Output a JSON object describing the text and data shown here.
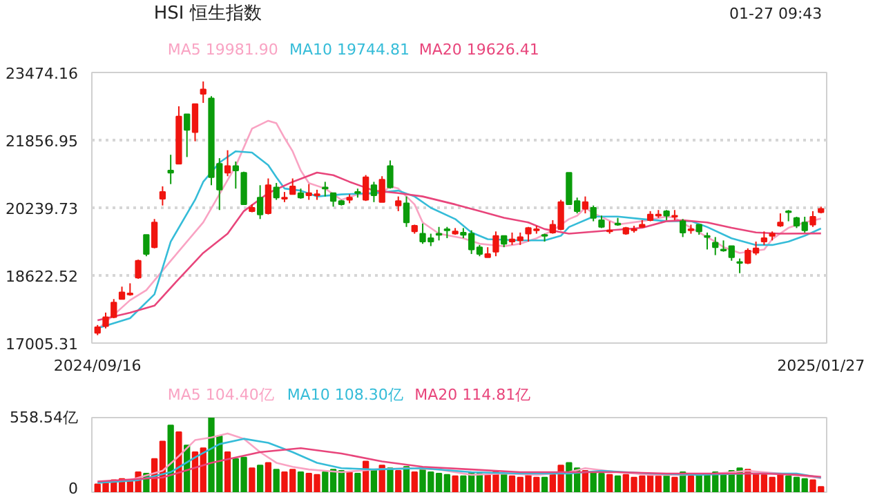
{
  "chart_data": [
    {
      "type": "candlestick",
      "title": "HSI 恒生指数",
      "annotations": [
        "01-27 09:43"
      ],
      "legend": "top",
      "grid": "y",
      "categories": [
        "2024/09/16",
        null,
        null,
        null,
        null,
        null,
        null,
        null,
        null,
        null,
        null,
        null,
        null,
        null,
        null,
        null,
        null,
        null,
        null,
        null,
        null,
        null,
        null,
        null,
        null,
        null,
        null,
        null,
        null,
        null,
        null,
        null,
        null,
        null,
        null,
        null,
        null,
        null,
        null,
        null,
        null,
        null,
        null,
        null,
        null,
        null,
        null,
        null,
        null,
        null,
        null,
        null,
        null,
        null,
        null,
        null,
        null,
        null,
        null,
        null,
        null,
        null,
        null,
        null,
        null,
        null,
        null,
        null,
        null,
        null,
        null,
        null,
        null,
        null,
        null,
        null,
        null,
        null,
        null,
        null,
        null,
        null,
        null,
        null,
        null,
        null,
        null,
        null,
        null,
        "2025/01/27"
      ],
      "ohlc": [
        [
          17249,
          17437,
          17195,
          17383
        ],
        [
          17410,
          17734,
          17356,
          17626
        ],
        [
          17626,
          18057,
          17599,
          17976
        ],
        [
          18057,
          18354,
          18057,
          18219
        ],
        [
          18165,
          18434,
          18138,
          18192
        ],
        [
          18569,
          19000,
          18542,
          18973
        ],
        [
          19594,
          19594,
          19081,
          19135
        ],
        [
          19297,
          19971,
          19270,
          19890
        ],
        [
          20456,
          20752,
          20294,
          20618
        ],
        [
          21130,
          21507,
          20806,
          21076
        ],
        [
          21291,
          22666,
          21291,
          22423
        ],
        [
          22477,
          22477,
          21453,
          22100
        ],
        [
          22046,
          22720,
          21830,
          22720
        ],
        [
          22962,
          23259,
          22747,
          23070
        ],
        [
          22854,
          22908,
          20779,
          20968
        ],
        [
          21291,
          21426,
          20186,
          20671
        ],
        [
          21076,
          21615,
          20995,
          21237
        ],
        [
          21237,
          21345,
          20698,
          21130
        ],
        [
          21076,
          21103,
          20321,
          20321
        ],
        [
          20159,
          20321,
          20132,
          20240
        ],
        [
          20483,
          20779,
          19971,
          20079
        ],
        [
          20106,
          20941,
          20079,
          20779
        ],
        [
          20725,
          20833,
          20429,
          20483
        ],
        [
          20456,
          20618,
          20375,
          20483
        ],
        [
          20564,
          20941,
          20564,
          20752
        ],
        [
          20591,
          20698,
          20456,
          20483
        ],
        [
          20537,
          20806,
          20429,
          20591
        ],
        [
          20537,
          20671,
          20429,
          20564
        ],
        [
          20725,
          20860,
          20510,
          20698
        ],
        [
          20591,
          20591,
          20267,
          20402
        ],
        [
          20402,
          20429,
          20294,
          20321
        ],
        [
          20429,
          20564,
          20348,
          20483
        ],
        [
          20618,
          20698,
          20483,
          20591
        ],
        [
          20429,
          21022,
          20402,
          20968
        ],
        [
          20779,
          20860,
          20375,
          20537
        ],
        [
          20375,
          20995,
          20375,
          20914
        ],
        [
          21237,
          21372,
          20698,
          20725
        ],
        [
          20294,
          20510,
          20159,
          20402
        ],
        [
          20348,
          20510,
          19782,
          19890
        ],
        [
          19674,
          19836,
          19620,
          19809
        ],
        [
          19620,
          19863,
          19378,
          19432
        ],
        [
          19513,
          19620,
          19324,
          19432
        ],
        [
          19620,
          19782,
          19459,
          19594
        ],
        [
          19728,
          19782,
          19513,
          19701
        ],
        [
          19620,
          19755,
          19594,
          19674
        ],
        [
          19647,
          19755,
          19513,
          19594
        ],
        [
          19620,
          19701,
          19135,
          19243
        ],
        [
          19297,
          19351,
          19081,
          19135
        ],
        [
          19054,
          19297,
          19054,
          19135
        ],
        [
          19189,
          19674,
          19081,
          19566
        ],
        [
          19566,
          19566,
          19297,
          19378
        ],
        [
          19432,
          19647,
          19351,
          19486
        ],
        [
          19459,
          19647,
          19351,
          19540
        ],
        [
          19620,
          19782,
          19432,
          19755
        ],
        [
          19701,
          19809,
          19620,
          19728
        ],
        [
          19594,
          19620,
          19432,
          19566
        ],
        [
          19647,
          19944,
          19620,
          19836
        ],
        [
          19728,
          20429,
          19701,
          20375
        ],
        [
          21076,
          21076,
          20321,
          20321
        ],
        [
          20402,
          20483,
          20106,
          20159
        ],
        [
          20213,
          20510,
          20106,
          20375
        ],
        [
          20240,
          20294,
          19917,
          19998
        ],
        [
          19944,
          20052,
          19755,
          19782
        ],
        [
          19674,
          19917,
          19620,
          19701
        ],
        [
          19863,
          19998,
          19809,
          19836
        ],
        [
          19620,
          19782,
          19594,
          19755
        ],
        [
          19701,
          19809,
          19647,
          19728
        ],
        [
          19782,
          19944,
          19782,
          19836
        ],
        [
          19944,
          20159,
          19917,
          20079
        ],
        [
          20052,
          20186,
          19998,
          20079
        ],
        [
          20159,
          20186,
          19944,
          20052
        ],
        [
          20025,
          20186,
          19944,
          20052
        ],
        [
          19917,
          19971,
          19540,
          19647
        ],
        [
          19701,
          19836,
          19620,
          19728
        ],
        [
          19836,
          19836,
          19594,
          19674
        ],
        [
          19566,
          19647,
          19243,
          19540
        ],
        [
          19405,
          19540,
          19108,
          19297
        ],
        [
          19243,
          19459,
          19189,
          19216
        ],
        [
          19324,
          19324,
          18973,
          19054
        ],
        [
          18946,
          19027,
          18677,
          18919
        ],
        [
          18919,
          19270,
          18893,
          19216
        ],
        [
          19162,
          19432,
          19108,
          19270
        ],
        [
          19432,
          19674,
          19351,
          19513
        ],
        [
          19566,
          19674,
          19459,
          19620
        ],
        [
          19809,
          20106,
          19782,
          19890
        ],
        [
          20159,
          20186,
          19917,
          20132
        ],
        [
          19998,
          20025,
          19755,
          19809
        ],
        [
          19890,
          20025,
          19647,
          19701
        ],
        [
          19836,
          20159,
          19782,
          20025
        ],
        [
          20132,
          20267,
          20106,
          20213
        ]
      ],
      "colors": [
        "#f0150f",
        "#f0150f",
        "#f0150f",
        "#f0150f",
        "#f0150f",
        "#f0150f",
        "#0b9c0b",
        "#f0150f",
        "#f0150f",
        "#0b9c0b",
        "#f0150f",
        "#0b9c0b",
        "#f0150f",
        "#f0150f",
        "#0b9c0b",
        "#0b9c0b",
        "#f0150f",
        "#0b9c0b",
        "#0b9c0b",
        "#f0150f",
        "#0b9c0b",
        "#f0150f",
        "#0b9c0b",
        "#f0150f",
        "#f0150f",
        "#0b9c0b",
        "#f0150f",
        "#f0150f",
        "#0b9c0b",
        "#0b9c0b",
        "#0b9c0b",
        "#f0150f",
        "#0b9c0b",
        "#f0150f",
        "#0b9c0b",
        "#f0150f",
        "#0b9c0b",
        "#f0150f",
        "#0b9c0b",
        "#f0150f",
        "#0b9c0b",
        "#0b9c0b",
        "#0b9c0b",
        "#0b9c0b",
        "#f0150f",
        "#0b9c0b",
        "#0b9c0b",
        "#0b9c0b",
        "#f0150f",
        "#f0150f",
        "#0b9c0b",
        "#f0150f",
        "#f0150f",
        "#f0150f",
        "#f0150f",
        "#0b9c0b",
        "#f0150f",
        "#f0150f",
        "#0b9c0b",
        "#0b9c0b",
        "#f0150f",
        "#0b9c0b",
        "#0b9c0b",
        "#f0150f",
        "#0b9c0b",
        "#f0150f",
        "#f0150f",
        "#f0150f",
        "#f0150f",
        "#f0150f",
        "#0b9c0b",
        "#f0150f",
        "#0b9c0b",
        "#f0150f",
        "#0b9c0b",
        "#0b9c0b",
        "#0b9c0b",
        "#0b9c0b",
        "#0b9c0b",
        "#0b9c0b",
        "#f0150f",
        "#f0150f",
        "#f0150f",
        "#f0150f",
        "#f0150f",
        "#0b9c0b",
        "#0b9c0b",
        "#0b9c0b",
        "#f0150f",
        "#f0150f"
      ],
      "series": [
        {
          "type": "line",
          "name": "MA5 19981.90",
          "color": "#f9a3c3",
          "values": [
            17330,
            null,
            17680,
            null,
            18030,
            null,
            18270,
            null,
            null,
            18970,
            null,
            null,
            null,
            19890,
            null,
            null,
            null,
            21240,
            null,
            22130,
            null,
            22320,
            22260,
            21910,
            21590,
            21130,
            20830,
            null,
            20700,
            null,
            20430,
            null,
            20560,
            null,
            null,
            20590,
            20750,
            20700,
            null,
            20320,
            19890,
            null,
            19620,
            null,
            null,
            19510,
            null,
            19380,
            null,
            null,
            19320,
            null,
            19380,
            null,
            19510,
            null,
            19700,
            null,
            19970,
            20050,
            20240,
            20110,
            null,
            null,
            19840,
            null,
            null,
            19920,
            null,
            null,
            20030,
            20000,
            null,
            19760,
            null,
            null,
            19430,
            19300,
            null,
            19160,
            null,
            null,
            19240,
            19490,
            null,
            19760,
            null,
            19890,
            null,
            19981.9
          ]
        },
        {
          "type": "line",
          "name": "MA10 19744.81",
          "color": "#35bcd8",
          "values": [
            17360,
            null,
            null,
            null,
            17600,
            null,
            null,
            18170,
            null,
            19430,
            null,
            null,
            20430,
            20860,
            null,
            21320,
            null,
            21590,
            null,
            21560,
            null,
            21260,
            20970,
            20700,
            null,
            20650,
            null,
            20510,
            null,
            null,
            20560,
            null,
            null,
            null,
            20590,
            null,
            null,
            20650,
            null,
            20510,
            null,
            20240,
            null,
            null,
            19970,
            null,
            19650,
            null,
            19490,
            null,
            null,
            null,
            19460,
            null,
            null,
            19460,
            null,
            19570,
            19780,
            null,
            null,
            20030,
            null,
            null,
            20030,
            null,
            null,
            19970,
            null,
            null,
            19920,
            null,
            null,
            19920,
            null,
            19780,
            null,
            null,
            19510,
            null,
            null,
            19350,
            null,
            19350,
            null,
            19430,
            null,
            19570,
            null,
            19744.81
          ]
        },
        {
          "type": "line",
          "name": "MA20 19626.41",
          "color": "#e8457b",
          "values": [
            17550,
            null,
            null,
            null,
            17730,
            null,
            null,
            17900,
            null,
            null,
            18540,
            null,
            null,
            19160,
            null,
            null,
            19620,
            null,
            20160,
            null,
            null,
            20590,
            null,
            null,
            20860,
            null,
            null,
            21080,
            null,
            21020,
            null,
            20860,
            null,
            null,
            20650,
            null,
            null,
            20590,
            null,
            null,
            20510,
            null,
            null,
            null,
            20320,
            null,
            null,
            20160,
            null,
            null,
            20000,
            null,
            null,
            19890,
            null,
            19730,
            null,
            null,
            19620,
            null,
            null,
            null,
            null,
            19700,
            null,
            null,
            null,
            19760,
            null,
            null,
            19920,
            null,
            19940,
            null,
            null,
            19890,
            null,
            null,
            19760,
            null,
            null,
            19650,
            null,
            null,
            19620,
            null,
            null,
            null,
            null,
            19626.41
          ]
        }
      ],
      "ylim": [
        17005.31,
        23474.16
      ],
      "yticks": [
        17005.31,
        18622.52,
        20239.73,
        21856.95,
        23474.16
      ]
    },
    {
      "type": "bar",
      "legend": "top",
      "tick_labels": "y",
      "categories": [
        "2024/09/16",
        null,
        null,
        null,
        null,
        null,
        null,
        null,
        null,
        null,
        null,
        null,
        null,
        null,
        null,
        null,
        null,
        null,
        null,
        null,
        null,
        null,
        null,
        null,
        null,
        null,
        null,
        null,
        null,
        null,
        null,
        null,
        null,
        null,
        null,
        null,
        null,
        null,
        null,
        null,
        null,
        null,
        null,
        null,
        null,
        null,
        null,
        null,
        null,
        null,
        null,
        null,
        null,
        null,
        null,
        null,
        null,
        null,
        null,
        null,
        null,
        null,
        null,
        null,
        null,
        null,
        null,
        null,
        null,
        null,
        null,
        null,
        null,
        null,
        null,
        null,
        null,
        null,
        null,
        null,
        null,
        null,
        null,
        null,
        null,
        null,
        null,
        null,
        null,
        "2025/01/27"
      ],
      "values": [
        60,
        80,
        90,
        100,
        90,
        150,
        140,
        250,
        380,
        500,
        450,
        350,
        300,
        330,
        558.54,
        420,
        300,
        250,
        260,
        180,
        200,
        220,
        170,
        150,
        170,
        150,
        140,
        130,
        150,
        170,
        160,
        150,
        140,
        230,
        170,
        200,
        180,
        160,
        190,
        150,
        170,
        150,
        140,
        130,
        120,
        120,
        150,
        140,
        130,
        160,
        140,
        120,
        110,
        130,
        110,
        110,
        130,
        200,
        220,
        180,
        160,
        150,
        140,
        130,
        120,
        130,
        110,
        120,
        140,
        120,
        130,
        110,
        150,
        120,
        130,
        140,
        150,
        130,
        160,
        180,
        170,
        140,
        130,
        110,
        130,
        120,
        110,
        100,
        90,
        40
      ],
      "colors": [
        "#f0150f",
        "#f0150f",
        "#f0150f",
        "#f0150f",
        "#f0150f",
        "#f0150f",
        "#0b9c0b",
        "#f0150f",
        "#f0150f",
        "#0b9c0b",
        "#f0150f",
        "#0b9c0b",
        "#f0150f",
        "#f0150f",
        "#0b9c0b",
        "#0b9c0b",
        "#f0150f",
        "#0b9c0b",
        "#0b9c0b",
        "#f0150f",
        "#0b9c0b",
        "#f0150f",
        "#0b9c0b",
        "#f0150f",
        "#f0150f",
        "#0b9c0b",
        "#f0150f",
        "#f0150f",
        "#0b9c0b",
        "#0b9c0b",
        "#0b9c0b",
        "#f0150f",
        "#0b9c0b",
        "#f0150f",
        "#0b9c0b",
        "#f0150f",
        "#0b9c0b",
        "#f0150f",
        "#0b9c0b",
        "#f0150f",
        "#0b9c0b",
        "#0b9c0b",
        "#0b9c0b",
        "#0b9c0b",
        "#f0150f",
        "#0b9c0b",
        "#0b9c0b",
        "#0b9c0b",
        "#f0150f",
        "#f0150f",
        "#0b9c0b",
        "#f0150f",
        "#f0150f",
        "#f0150f",
        "#f0150f",
        "#0b9c0b",
        "#f0150f",
        "#f0150f",
        "#0b9c0b",
        "#0b9c0b",
        "#f0150f",
        "#0b9c0b",
        "#0b9c0b",
        "#f0150f",
        "#0b9c0b",
        "#f0150f",
        "#f0150f",
        "#f0150f",
        "#f0150f",
        "#f0150f",
        "#0b9c0b",
        "#f0150f",
        "#0b9c0b",
        "#f0150f",
        "#0b9c0b",
        "#0b9c0b",
        "#0b9c0b",
        "#0b9c0b",
        "#0b9c0b",
        "#0b9c0b",
        "#f0150f",
        "#f0150f",
        "#f0150f",
        "#f0150f",
        "#f0150f",
        "#0b9c0b",
        "#0b9c0b",
        "#0b9c0b",
        "#f0150f",
        "#f0150f"
      ],
      "series": [
        {
          "type": "line",
          "name": "MA5 104.40亿",
          "color": "#f9a3c3",
          "values": [
            70,
            null,
            null,
            null,
            90,
            null,
            null,
            null,
            160,
            null,
            270,
            null,
            390,
            null,
            410,
            null,
            440,
            null,
            400,
            null,
            300,
            null,
            220,
            null,
            190,
            null,
            170,
            null,
            null,
            null,
            150,
            null,
            null,
            null,
            170,
            null,
            null,
            null,
            180,
            null,
            null,
            null,
            170,
            null,
            null,
            null,
            130,
            null,
            null,
            null,
            140,
            null,
            null,
            null,
            130,
            null,
            null,
            null,
            150,
            null,
            180,
            null,
            null,
            null,
            150,
            null,
            null,
            null,
            130,
            null,
            null,
            null,
            130,
            null,
            null,
            null,
            140,
            null,
            null,
            null,
            160,
            null,
            null,
            null,
            140,
            null,
            null,
            120,
            null,
            104.4
          ]
        },
        {
          "type": "line",
          "name": "MA10 108.30亿",
          "color": "#35bcd8",
          "values": [
            70,
            null,
            null,
            null,
            null,
            90,
            null,
            null,
            null,
            150,
            null,
            null,
            260,
            null,
            null,
            360,
            null,
            null,
            400,
            null,
            null,
            370,
            null,
            null,
            300,
            null,
            null,
            220,
            null,
            null,
            180,
            null,
            null,
            null,
            170,
            null,
            null,
            null,
            null,
            null,
            180,
            null,
            null,
            null,
            null,
            null,
            150,
            null,
            null,
            null,
            null,
            null,
            140,
            null,
            null,
            null,
            null,
            null,
            140,
            null,
            null,
            null,
            160,
            null,
            null,
            null,
            null,
            null,
            140,
            null,
            null,
            null,
            null,
            null,
            130,
            null,
            null,
            null,
            null,
            null,
            140,
            null,
            null,
            null,
            null,
            null,
            140,
            null,
            null,
            108.3
          ]
        },
        {
          "type": "line",
          "name": "MA20 114.81亿",
          "color": "#e8457b",
          "values": [
            80,
            null,
            null,
            null,
            null,
            null,
            null,
            null,
            110,
            null,
            null,
            null,
            null,
            null,
            220,
            null,
            null,
            null,
            null,
            null,
            300,
            null,
            null,
            null,
            null,
            330,
            null,
            null,
            null,
            null,
            290,
            null,
            null,
            null,
            null,
            230,
            null,
            null,
            null,
            null,
            190,
            null,
            null,
            null,
            null,
            null,
            170,
            null,
            null,
            null,
            null,
            null,
            150,
            null,
            null,
            null,
            null,
            null,
            150,
            null,
            null,
            null,
            null,
            null,
            150,
            null,
            null,
            null,
            null,
            null,
            140,
            null,
            null,
            null,
            null,
            null,
            140,
            null,
            null,
            null,
            null,
            null,
            140,
            null,
            null,
            null,
            130,
            null,
            null,
            114.81
          ]
        }
      ],
      "ylim": [
        0,
        558.54
      ],
      "yticks": [
        0,
        {
          "value": 558.54,
          "label": "558.54亿"
        }
      ]
    }
  ]
}
